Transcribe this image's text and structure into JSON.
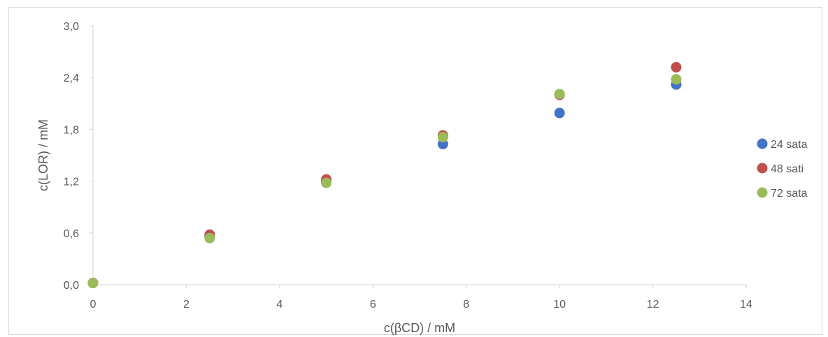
{
  "chart_data": {
    "type": "scatter",
    "xlabel": "c(βCD) / mM",
    "ylabel": "c(LOR) / mM",
    "xlim": [
      0,
      14
    ],
    "ylim": [
      0,
      3.0
    ],
    "x_ticks": [
      0,
      2,
      4,
      6,
      8,
      10,
      12,
      14
    ],
    "x_tick_labels": [
      "0",
      "2",
      "4",
      "6",
      "8",
      "10",
      "12",
      "14"
    ],
    "y_ticks": [
      0,
      0.6,
      1.2,
      1.8,
      2.4,
      3.0
    ],
    "y_tick_labels": [
      "0,0",
      "0,6",
      "1,2",
      "1,8",
      "2,4",
      "3,0"
    ],
    "grid": false,
    "legend_position": "right",
    "series": [
      {
        "name": "24 sata",
        "color": "#4472c4",
        "x": [
          0,
          2.5,
          5,
          7.5,
          10,
          12.5
        ],
        "y": [
          0.02,
          0.56,
          1.2,
          1.63,
          1.99,
          2.32
        ]
      },
      {
        "name": "48 sati",
        "color": "#c0504d",
        "x": [
          0,
          2.5,
          5,
          7.5,
          10,
          12.5
        ],
        "y": [
          0.02,
          0.58,
          1.22,
          1.73,
          2.2,
          2.52
        ]
      },
      {
        "name": "72 sata",
        "color": "#9bbb59",
        "x": [
          0,
          2.5,
          5,
          7.5,
          10,
          12.5
        ],
        "y": [
          0.02,
          0.54,
          1.18,
          1.71,
          2.21,
          2.38
        ]
      }
    ]
  }
}
